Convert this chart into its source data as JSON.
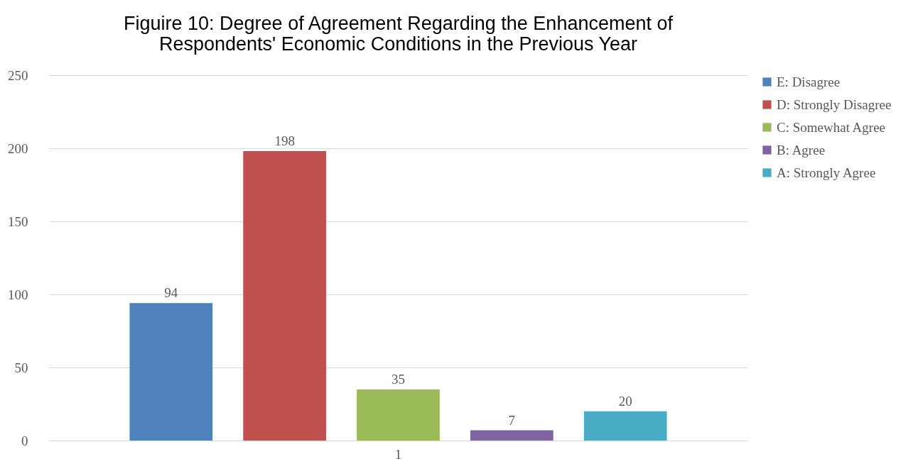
{
  "chart_data": {
    "type": "bar",
    "title": "Figuire 10:  Degree of Agreement Regarding the Enhancement of Respondents' Economic Conditions in the Previous Year",
    "categories": [
      "1"
    ],
    "series": [
      {
        "name": "E: Disagree",
        "color": "#4f81bd",
        "values": [
          94
        ]
      },
      {
        "name": "D: Strongly Disagree",
        "color": "#c0504d",
        "values": [
          198
        ]
      },
      {
        "name": "C: Somewhat Agree",
        "color": "#9bbb59",
        "values": [
          35
        ]
      },
      {
        "name": "B: Agree",
        "color": "#8064a2",
        "values": [
          7
        ]
      },
      {
        "name": "A: Strongly Agree",
        "color": "#4bacc6",
        "values": [
          20
        ]
      }
    ],
    "ylim": [
      0,
      250
    ],
    "yticks": [
      0,
      50,
      100,
      150,
      200,
      250
    ],
    "grid": "y",
    "legend": "right",
    "data_labels": true
  }
}
